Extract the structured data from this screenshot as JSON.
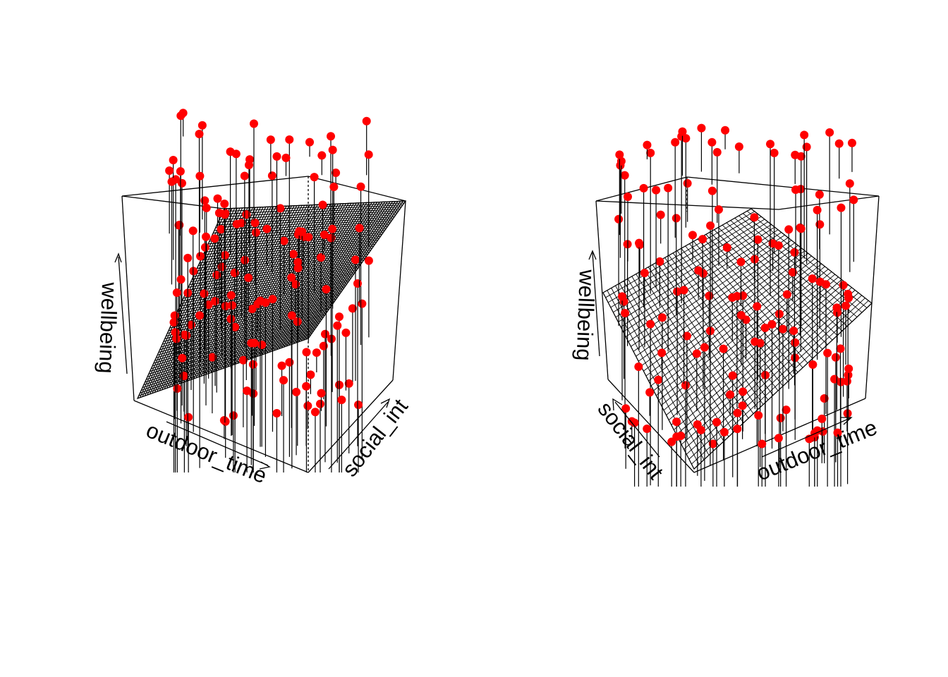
{
  "colors": {
    "point": "#ff0000",
    "line": "#000000",
    "background": "#ffffff"
  },
  "chart_data": [
    {
      "type": "scatter",
      "subtype": "3d-scatter-with-regression-plane",
      "panel": "left",
      "xlabel": "outdoor_time",
      "ylabel": "social_int",
      "zlabel": "wellbeing",
      "point_count": 150,
      "has_drop_lines": true,
      "has_regression_plane": true,
      "plane_style": "dense mesh",
      "seed": 11
    },
    {
      "type": "scatter",
      "subtype": "3d-scatter-with-regression-plane",
      "panel": "right",
      "xlabel": "outdoor_time",
      "ylabel": "social_int",
      "zlabel": "wellbeing",
      "point_count": 150,
      "has_drop_lines": true,
      "has_regression_plane": true,
      "plane_style": "grid mesh",
      "seed": 29
    }
  ]
}
